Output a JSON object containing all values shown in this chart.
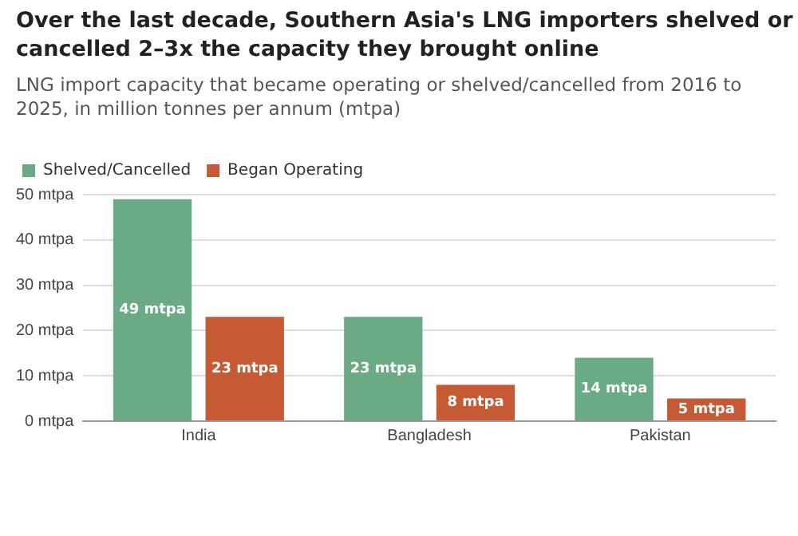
{
  "chart_data": {
    "type": "bar",
    "title": "Over the last decade, Southern Asia's LNG importers shelved or cancelled 2–3x the capacity they brought online",
    "subtitle": "LNG import capacity that became operating or shelved/cancelled from 2016 to 2025, in million tonnes per annum (mtpa)",
    "categories": [
      "India",
      "Bangladesh",
      "Pakistan"
    ],
    "series": [
      {
        "name": "Shelved/Cancelled",
        "color": "#6aab85",
        "values": [
          49,
          23,
          14
        ],
        "value_labels": [
          "49 mtpa",
          "23 mtpa",
          "14 mtpa"
        ]
      },
      {
        "name": "Began Operating",
        "color": "#c65a34",
        "values": [
          23,
          8,
          5
        ],
        "value_labels": [
          "23 mtpa",
          "8 mtpa",
          "5 mtpa"
        ]
      }
    ],
    "ylim": [
      0,
      50
    ],
    "yticks": [
      {
        "value": 0,
        "label": "0 mtpa"
      },
      {
        "value": 10,
        "label": "10 mtpa"
      },
      {
        "value": 20,
        "label": "20 mtpa"
      },
      {
        "value": 30,
        "label": "30 mtpa"
      },
      {
        "value": 40,
        "label": "40 mtpa"
      },
      {
        "value": 50,
        "label": "50 mtpa"
      }
    ],
    "grid": "y",
    "legend": "top left"
  }
}
